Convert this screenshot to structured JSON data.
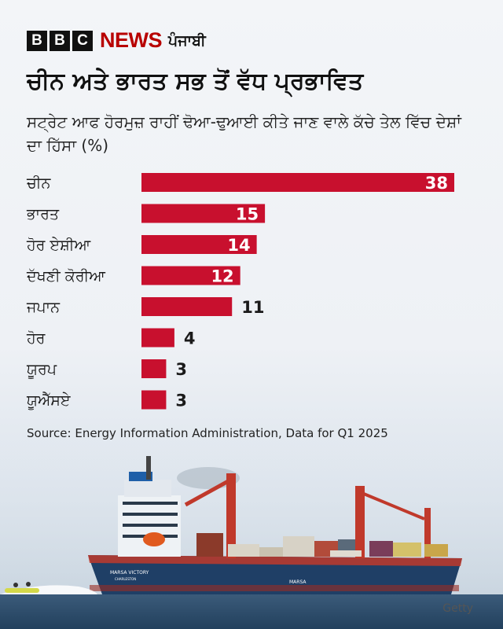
{
  "brand": {
    "letters": [
      "B",
      "B",
      "C"
    ],
    "news": "NEWS",
    "language": "ਪੰਜਾਬੀ"
  },
  "heading": {
    "title": "ਚੀਨ ਅਤੇ ਭਾਰਤ ਸਭ ਤੋਂ ਵੱਧ ਪ੍ਰਭਾਵਿਤ",
    "subtitle": "ਸਟ੍ਰੇਟ ਆਫ ਹੋਰਮੁਜ਼ ਰਾਹੀਂ ਢੋਆ-ਢੁਆਈ ਕੀਤੇ ਜਾਣ ਵਾਲੇ ਕੱਚੇ ਤੇਲ ਵਿੱਚ ਦੇਸ਼ਾਂ ਦਾ ਹਿੱਸਾ (%)"
  },
  "chart_data": {
    "type": "bar",
    "orientation": "horizontal",
    "title": "ਚੀਨ ਅਤੇ ਭਾਰਤ ਸਭ ਤੋਂ ਵੱਧ ਪ੍ਰਭਾਵਿਤ",
    "xlabel": "",
    "ylabel": "",
    "unit": "%",
    "categories": [
      "ਚੀਨ",
      "ਭਾਰਤ",
      "ਹੋਰ ਏਸ਼ੀਆ",
      "ਦੱਖਣੀ ਕੋਰੀਆ",
      "ਜਪਾਨ",
      "ਹੋਰ",
      "ਯੂਰਪ",
      "ਯੂਐੱਸਏ"
    ],
    "values": [
      38,
      15,
      14,
      12,
      11,
      4,
      3,
      3
    ],
    "xlim": [
      0,
      38
    ],
    "bar_color": "#c8102e",
    "grid": false,
    "legend": "none"
  },
  "source": "Source: Energy Information Administration, Data for Q1 2025",
  "photo": {
    "credit": "Getty",
    "ship_name": "MARSA VICTORY",
    "ship_port": "CHARLESTON",
    "hull_text": "MARSA"
  },
  "colors": {
    "accent_red": "#b80000",
    "bar": "#c8102e",
    "hull": "#1f3f66",
    "sea": "#2f4f6d"
  }
}
